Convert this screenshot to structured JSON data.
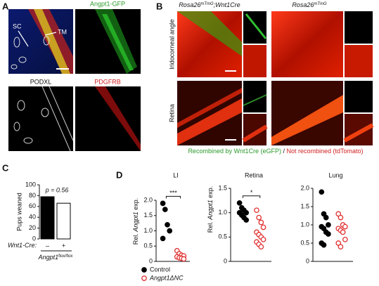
{
  "panel_labels": [
    "A",
    "B",
    "C",
    "D"
  ],
  "panel_a": {
    "arrow_labels": [
      "SC",
      "TM"
    ],
    "channels": [
      "Angpt1-GFP",
      "PODXL",
      "PDGFRB"
    ]
  },
  "panel_b": {
    "columns": [
      {
        "gene": "Rosa26",
        "allele": "mTmG",
        "suffix": ";Wnt1Cre"
      },
      {
        "gene": "Rosa26",
        "allele": "mTmG"
      }
    ],
    "rows": [
      "Iridocorneal angle",
      "Retina"
    ],
    "caption": [
      "Recombined by Wnt1Cre (eGFP)",
      " / ",
      "Not recombined (tdTomato)"
    ]
  },
  "legend": [
    {
      "name": "Control",
      "color": "#000000"
    },
    {
      "name": "Angpt1ΔNC",
      "color": "#e03030"
    }
  ],
  "chart_data": [
    {
      "type": "bar",
      "y_label": "Pups weaned",
      "annotation": "p = 0.56",
      "categories": [
        "–",
        "+"
      ],
      "values": [
        78,
        66
      ],
      "colors": [
        "#000000",
        "#ffffff"
      ],
      "ylim": [
        0,
        100
      ],
      "yticks": [
        0,
        20,
        40,
        60,
        80,
        100
      ],
      "row_label": "Wnt1-Cre:",
      "group_label": {
        "gene": "Angpt1",
        "allele": "flox/flox"
      }
    },
    {
      "type": "dot",
      "title": "LI",
      "y_label": [
        "Rel. ",
        "Angpt1",
        " exp."
      ],
      "significance": "***",
      "ylim": [
        0,
        2
      ],
      "yticks": [
        0,
        0.5,
        {
          "value": 1,
          "label": "1.0"
        },
        1.5,
        {
          "value": 2,
          "label": "2.0"
        }
      ],
      "series": [
        {
          "values": [
            1.9,
            1.7,
            1.2,
            1.0,
            0.75
          ]
        },
        {
          "values": [
            0.35,
            0.25,
            0.2,
            0.18,
            0.15,
            0.12,
            0.1,
            0.08
          ]
        }
      ]
    },
    {
      "type": "dot",
      "title": "Retina",
      "y_label": [
        "Rel. ",
        "Angpt1",
        " exp."
      ],
      "significance": "*",
      "ylim": [
        0,
        1.5
      ],
      "yticks": [
        0,
        0.5,
        {
          "value": 1,
          "label": "1.0"
        },
        1.5
      ],
      "series": [
        {
          "values": [
            1.2,
            1.1,
            1.05,
            1.0,
            1.0,
            0.95,
            0.9,
            0.85
          ]
        },
        {
          "values": [
            1.05,
            0.9,
            0.8,
            0.7,
            0.6,
            0.55,
            0.5,
            0.45,
            0.4,
            0.35,
            0.3
          ]
        }
      ]
    },
    {
      "type": "dot",
      "title": "Lung",
      "ylim": [
        0,
        2
      ],
      "yticks": [
        0,
        0.5,
        {
          "value": 1,
          "label": "1.0"
        },
        1.5,
        {
          "value": 2,
          "label": "2.0"
        }
      ],
      "series": [
        {
          "values": [
            1.9,
            1.3,
            1.2,
            1.0,
            0.95,
            0.9,
            0.8,
            0.75,
            0.5,
            0.45
          ]
        },
        {
          "values": [
            1.3,
            1.2,
            1.0,
            0.95,
            0.9,
            0.85,
            0.8,
            0.6,
            0.5,
            0.4
          ]
        }
      ]
    }
  ]
}
